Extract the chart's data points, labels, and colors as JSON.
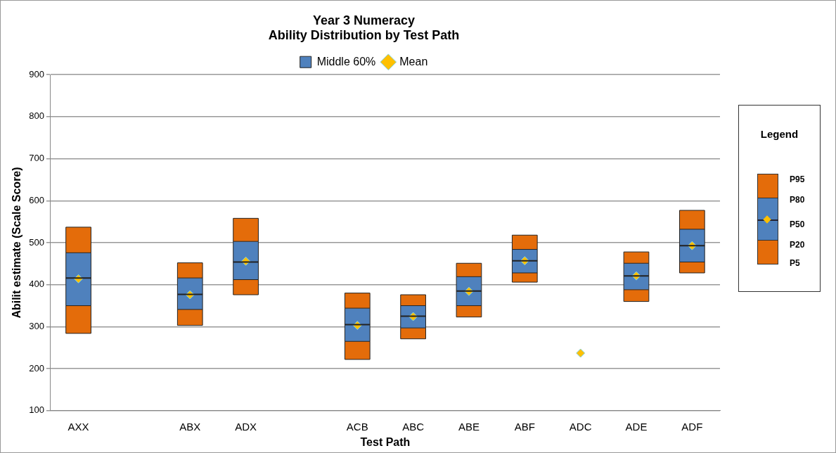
{
  "chart_data": {
    "type": "box",
    "title": "Year 3 Numeracy",
    "subtitle": "Ability Distribution by Test Path",
    "xlabel": "Test Path",
    "ylabel": "Abilit estimate (Scale Score)",
    "legend_title": "Legend",
    "annotations": [
      "P95",
      "P80",
      "P50",
      "P20",
      "P5"
    ],
    "categories": [
      "AXX",
      null,
      "ABX",
      "ADX",
      null,
      "ACB",
      "ABC",
      "ABE",
      "ABF",
      "ADC",
      "ADE",
      "ADF"
    ],
    "ylim": [
      100,
      900
    ],
    "yticks": [
      100,
      200,
      300,
      400,
      500,
      600,
      700,
      800,
      900
    ],
    "grid": "y",
    "legend": "top",
    "series": [
      {
        "name": "Middle 60%",
        "color": "#4f81bd",
        "boxes": [
          {
            "low": 284,
            "q1": 350,
            "median": 416,
            "q3": 476,
            "high": 537
          },
          null,
          {
            "low": 303,
            "q1": 341,
            "median": 377,
            "q3": 416,
            "high": 452
          },
          {
            "low": 376,
            "q1": 412,
            "median": 454,
            "q3": 503,
            "high": 558
          },
          null,
          {
            "low": 222,
            "q1": 265,
            "median": 305,
            "q3": 344,
            "high": 380
          },
          {
            "low": 271,
            "q1": 297,
            "median": 325,
            "q3": 350,
            "high": 376
          },
          {
            "low": 323,
            "q1": 350,
            "median": 385,
            "q3": 419,
            "high": 451
          },
          {
            "low": 406,
            "q1": 428,
            "median": 457,
            "q3": 484,
            "high": 518
          },
          null,
          {
            "low": 360,
            "q1": 388,
            "median": 421,
            "q3": 451,
            "high": 478
          },
          {
            "low": 428,
            "q1": 454,
            "median": 493,
            "q3": 532,
            "high": 577
          }
        ]
      },
      {
        "name": "Mean",
        "type": "scatter",
        "color": "#ffc000",
        "marker": "diamond",
        "x": [
          "AXX",
          null,
          "ABX",
          "ADX",
          null,
          "ACB",
          "ABC",
          "ABE",
          "ABF",
          "ADC",
          "ADE",
          "ADF"
        ],
        "values": [
          414,
          null,
          376,
          456,
          null,
          303,
          324,
          384,
          457,
          237,
          421,
          493
        ]
      }
    ]
  }
}
